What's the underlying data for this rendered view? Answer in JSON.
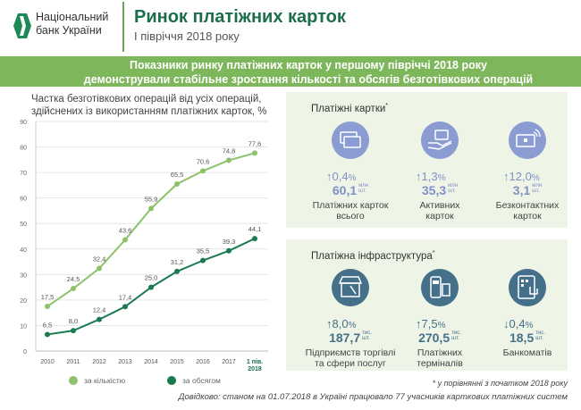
{
  "header": {
    "logo_line1": "Національний",
    "logo_line2": "банк України",
    "title": "Ринок платіжних карток",
    "subtitle": "І півріччя 2018 року"
  },
  "banner": {
    "line1": "Показники ринку платіжних карток у першому півріччі 2018 року",
    "line2": "демонстрували стабільне зростання кількості та обсягів безготівкових операцій"
  },
  "colors": {
    "accent": "#1d6e4a",
    "banner": "#7db65b",
    "series_count": "#8cc26a",
    "series_volume": "#1a7a50",
    "cards_icon": "#8b9cd3",
    "infra_icon": "#45708a",
    "panel_bg": "#eef4e6"
  },
  "chart_data": {
    "type": "line",
    "title": "Частка безготівкових операцій від усіх операцій, здійснених із використанням платіжних карток, %",
    "categories": [
      "2010",
      "2011",
      "2012",
      "2013",
      "2014",
      "2015",
      "2016",
      "2017",
      "1 пів. 2018"
    ],
    "series": [
      {
        "name": "за кількістю",
        "values": [
          17.5,
          24.5,
          32.4,
          43.6,
          55.9,
          65.5,
          70.6,
          74.8,
          77.6
        ],
        "labels": [
          "17,5",
          "24,5",
          "32,4",
          "43,6",
          "55,9",
          "65,5",
          "70,6",
          "74,8",
          "77,6"
        ]
      },
      {
        "name": "за обсягом",
        "values": [
          6.5,
          8.0,
          12.4,
          17.4,
          25.0,
          31.2,
          35.5,
          39.3,
          44.1
        ],
        "labels": [
          "6,5",
          "8,0",
          "12,4",
          "17,4",
          "25,0",
          "31,2",
          "35,5",
          "39,3",
          "44,1"
        ]
      }
    ],
    "ylim": [
      0,
      90
    ],
    "yticks": [
      0,
      10,
      20,
      30,
      40,
      50,
      60,
      70,
      80,
      90
    ],
    "grid": true,
    "legend": "bottom"
  },
  "cards": {
    "title": "Платіжні картки",
    "mark": "*",
    "items": [
      {
        "icon": "cards-icon",
        "change": "↑0,4",
        "pct": "%",
        "value": "60,1",
        "unit1": "млн",
        "unit2": "шт.",
        "label1": "Платіжних карток",
        "label2": "всього"
      },
      {
        "icon": "card-in-hand-icon",
        "change": "↑1,3",
        "pct": "%",
        "value": "35,3",
        "unit1": "млн",
        "unit2": "шт.",
        "label1": "Активних",
        "label2": "карток"
      },
      {
        "icon": "contactless-card-icon",
        "change": "↑12,0",
        "pct": "%",
        "value": "3,1",
        "unit1": "млн",
        "unit2": "шт.",
        "label1": "Безконтактних",
        "label2": "карток"
      }
    ]
  },
  "infra": {
    "title": "Платіжна інфраструктура",
    "mark": "*",
    "items": [
      {
        "icon": "shop-icon",
        "change": "↑8,0",
        "pct": "%",
        "value": "187,7",
        "unit1": "тис.",
        "unit2": "шт.",
        "label1": "Підприємств торгівлі",
        "label2": "та сфери послуг"
      },
      {
        "icon": "pos-terminal-icon",
        "change": "↑7,5",
        "pct": "%",
        "value": "270,5",
        "unit1": "тис.",
        "unit2": "шт.",
        "label1": "Платіжних",
        "label2": "терміналів"
      },
      {
        "icon": "atm-icon",
        "change": "↓0,4",
        "pct": "%",
        "value": "18,5",
        "unit1": "тис.",
        "unit2": "шт.",
        "label1": "Банкоматів",
        "label2": ""
      }
    ]
  },
  "footnote": "* у порівнянні з початком 2018 року",
  "reference": "Довідково: станом на 01.07.2018 в Україні працювало 77 учасників карткових платіжних систем"
}
